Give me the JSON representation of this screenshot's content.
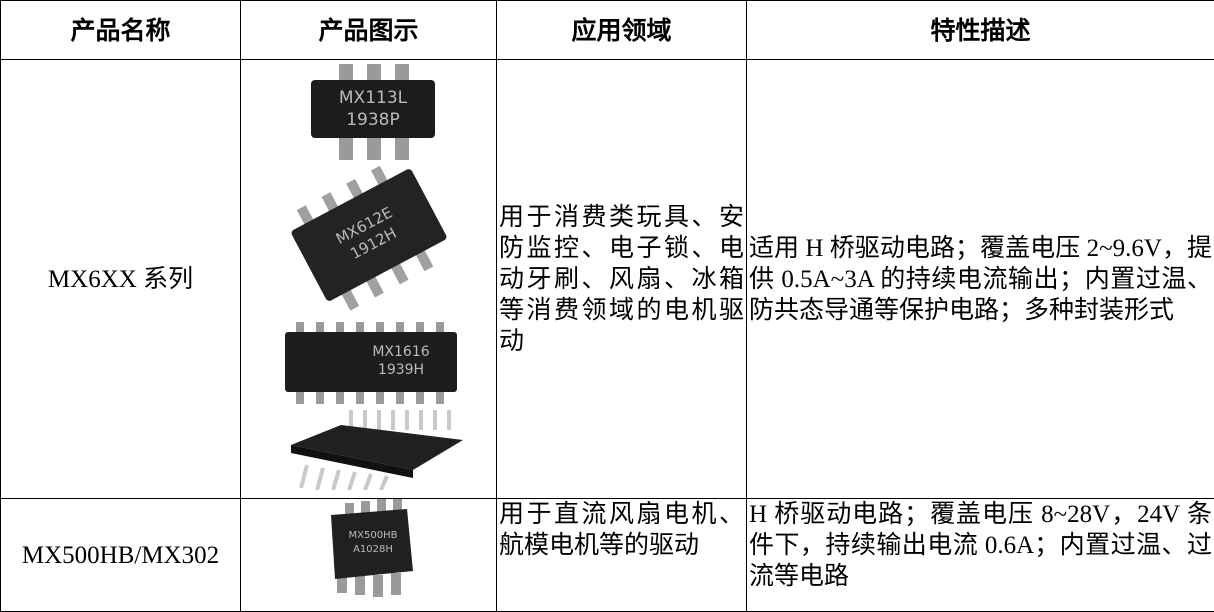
{
  "table": {
    "header": [
      "产品名称",
      "产品图示",
      "应用领域",
      "特性描述"
    ],
    "rows": [
      {
        "name": "MX6XX 系列",
        "chips": [
          [
            "MX113L",
            "1938P"
          ],
          [
            "MX612E",
            "1912H"
          ],
          [
            "MX1616",
            "1939H"
          ],
          []
        ],
        "application": "用于消费类玩具、安防监控、电子锁、电动牙刷、风扇、冰箱等消费领域的电机驱动",
        "features": "适用 H 桥驱动电路；覆盖电压 2~9.6V，提供 0.5A~3A 的持续电流输出；内置过温、防共态导通等保护电路；多种封装形式"
      },
      {
        "name": "MX500HB/MX302",
        "chips": [
          [
            "MX500HB",
            "A1028H"
          ]
        ],
        "application": "用于直流风扇电机、航模电机等的驱动",
        "features": "H 桥驱动电路；覆盖电压 8~28V，24V 条件下，持续输出电流 0.6A；内置过温、过流等电路"
      }
    ]
  }
}
